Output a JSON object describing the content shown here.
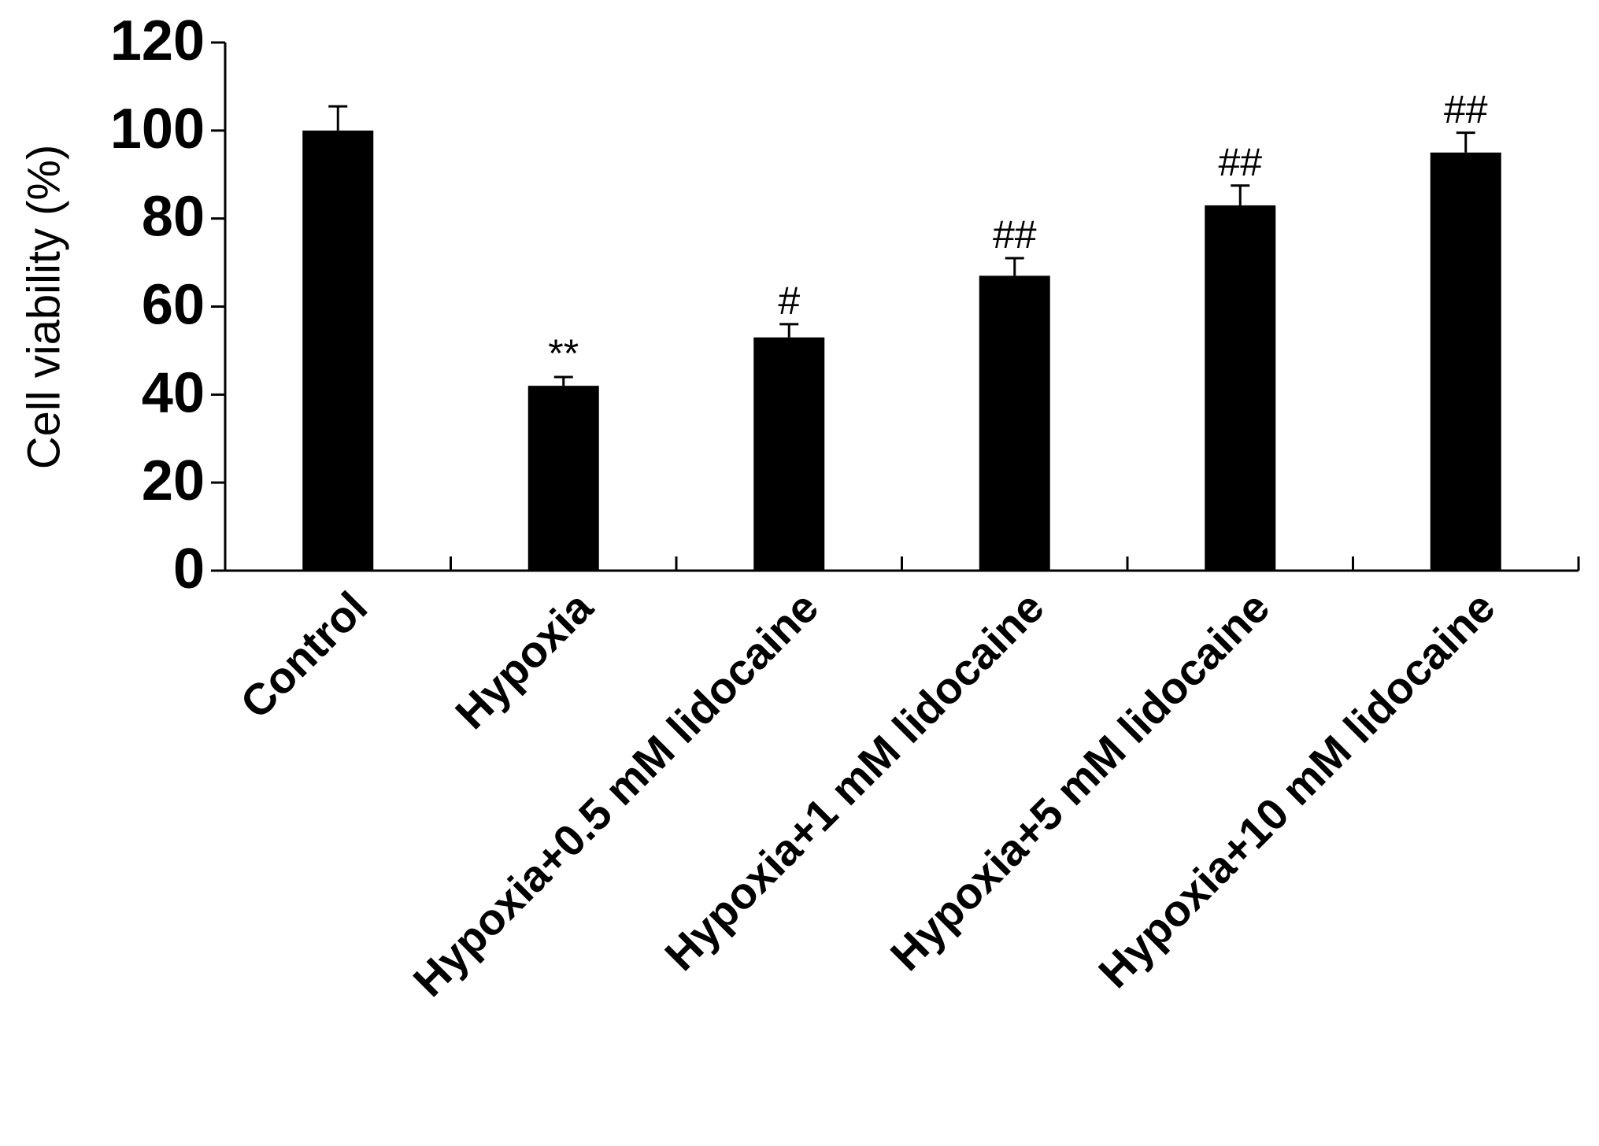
{
  "chart_data": {
    "type": "bar",
    "y_label": "Cell viability (%)",
    "categories": [
      "Control",
      "Hypoxia",
      "Hypoxia+0.5 mM lidocaine",
      "Hypoxia+1 mM lidocaine",
      "Hypoxia+5 mM lidocaine",
      "Hypoxia+10 mM lidocaine"
    ],
    "values": [
      100,
      42,
      53,
      67,
      83,
      95
    ],
    "errors": [
      5.5,
      2,
      3,
      4,
      4.5,
      4.5
    ],
    "annotations": [
      null,
      "**",
      "#",
      "##",
      "##",
      "##"
    ],
    "color": "#000000",
    "ylim": [
      0,
      120
    ],
    "yticks": [
      0,
      20,
      40,
      60,
      80,
      100,
      120
    ],
    "grid": false
  }
}
